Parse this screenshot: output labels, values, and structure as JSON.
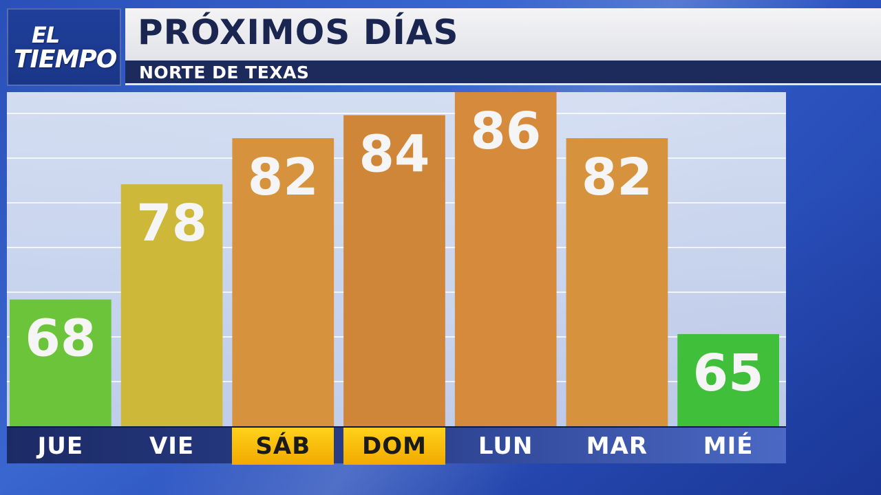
{
  "header": {
    "logo_line1": "EL",
    "logo_line2": "TIEMPO",
    "title": "PRÓXIMOS DÍAS",
    "subtitle": "NORTE DE TEXAS"
  },
  "colors": {
    "cool": "#6cc43a",
    "mild": "#cdb83a",
    "warm": "#d68f3a",
    "hot": "#cf8638",
    "weekend_highlight": "#f7bd10",
    "label_text": "#ffffff"
  },
  "chart_data": {
    "type": "bar",
    "title": "PRÓXIMOS DÍAS",
    "subtitle": "NORTE DE TEXAS",
    "categories": [
      "JUE",
      "VIE",
      "SÁB",
      "DOM",
      "LUN",
      "MAR",
      "MIÉ"
    ],
    "values": [
      68,
      78,
      82,
      84,
      86,
      82,
      65
    ],
    "bar_colors": [
      "#6cc43a",
      "#cdb83a",
      "#d6923c",
      "#cf8638",
      "#d68a3c",
      "#d6923c",
      "#3fbf3a"
    ],
    "weekend_days": [
      "SÁB",
      "DOM"
    ],
    "ylim": [
      57,
      86
    ],
    "grid": true,
    "xlabel": "",
    "ylabel": ""
  }
}
